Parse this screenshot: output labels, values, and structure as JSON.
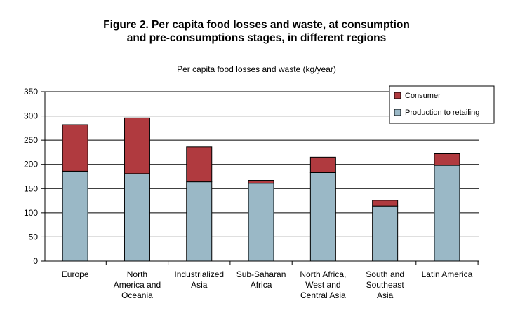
{
  "chart_data": {
    "type": "bar",
    "stacked": true,
    "title_line1": "Figure 2.  Per capita food losses and waste, at consumption",
    "title_line2": "and pre-consumptions stages, in different regions",
    "subtitle": "Per capita food losses and waste (kg/year)",
    "ylim": [
      0,
      350
    ],
    "yticks": [
      0,
      50,
      100,
      150,
      200,
      250,
      300,
      350
    ],
    "grid": true,
    "legend_position": "top-right",
    "categories": [
      [
        "Europe"
      ],
      [
        "North",
        "America and",
        "Oceania"
      ],
      [
        "Industrialized",
        "Asia"
      ],
      [
        "Sub-Saharan",
        "Africa"
      ],
      [
        "North Africa,",
        "West and",
        "Central Asia"
      ],
      [
        "South and",
        "Southeast",
        "Asia"
      ],
      [
        "Latin America"
      ]
    ],
    "series": [
      {
        "name": "Production to retailing",
        "color": "#9ab8c6",
        "values": [
          186,
          181,
          164,
          161,
          183,
          114,
          198
        ]
      },
      {
        "name": "Consumer",
        "color": "#b03a3f",
        "values": [
          96,
          115,
          72,
          6,
          32,
          12,
          24
        ]
      }
    ],
    "legend_order": [
      "Consumer",
      "Production to retailing"
    ]
  }
}
